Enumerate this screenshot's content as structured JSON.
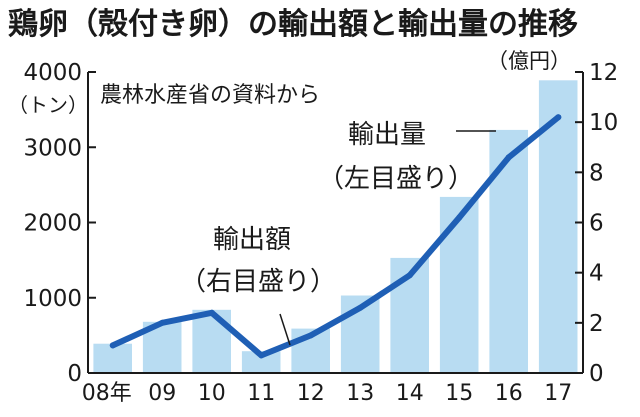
{
  "chart_data": {
    "type": "bar",
    "title": "鶏卵（殻付き卵）の輸出額と輸出量の推移",
    "source": "農林水産省の資料から",
    "categories": [
      "08年",
      "09",
      "10",
      "11",
      "12",
      "13",
      "14",
      "15",
      "16",
      "17"
    ],
    "left_axis": {
      "unit": "（トン）",
      "ticks": [
        "0",
        "1000",
        "2000",
        "3000",
        "4000"
      ],
      "range": [
        0,
        4000
      ]
    },
    "right_axis": {
      "unit": "（億円）",
      "ticks": [
        "0",
        "2",
        "4",
        "6",
        "8",
        "10",
        "12"
      ],
      "range": [
        0,
        12
      ]
    },
    "series": [
      {
        "name": "輸出量",
        "axis_note": "（左目盛り）",
        "type": "bar",
        "axis": "left",
        "values": [
          390,
          680,
          840,
          290,
          590,
          1030,
          1530,
          2340,
          3230,
          3890
        ],
        "color": "#b8dcf2"
      },
      {
        "name": "輸出額",
        "axis_note": "（右目盛り）",
        "type": "line",
        "axis": "right",
        "values": [
          1.1,
          2.0,
          2.4,
          0.7,
          1.5,
          2.6,
          3.9,
          6.2,
          8.6,
          10.2
        ],
        "color": "#1f5fb5"
      }
    ],
    "grid": false
  }
}
